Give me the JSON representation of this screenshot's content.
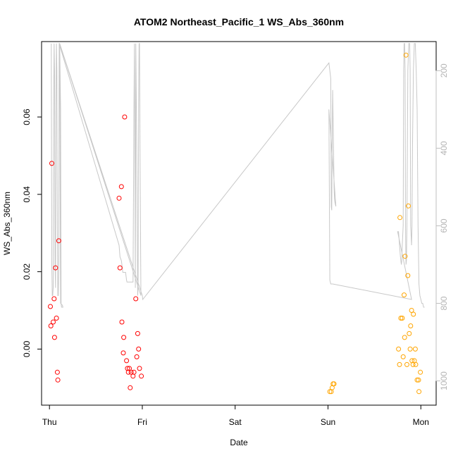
{
  "chart_data": {
    "type": "scatter",
    "title": "ATOM2 Northeast_Pacific_1 WS_Abs_360nm",
    "xlabel": "Date",
    "ylabel": "WS_Abs_360nm",
    "x_ticks": [
      "Thu",
      "Fri",
      "Sat",
      "Sun",
      "Mon"
    ],
    "x_tick_positions_days": [
      0,
      1,
      2,
      3,
      4
    ],
    "xlim_days": [
      -0.085,
      4.165
    ],
    "ylim": [
      -0.0145,
      0.0795
    ],
    "y_ticks": [
      0.0,
      0.02,
      0.04,
      0.06
    ],
    "y_tick_labels": [
      "0.00",
      "0.02",
      "0.04",
      "0.06"
    ],
    "right_axis": {
      "label": "",
      "reversed": true,
      "lim": [
        1062.5,
        125
      ],
      "ticks": [
        200,
        400,
        600,
        800,
        1000
      ],
      "tick_labels": [
        "200",
        "400",
        "600",
        "800",
        "1000"
      ],
      "color": "#bfbfbf"
    },
    "series": [
      {
        "color": "#ff0000",
        "marker": "open-circle",
        "points": [
          {
            "x": 0.01,
            "y": 0.011
          },
          {
            "x": 0.015,
            "y": 0.006
          },
          {
            "x": 0.025,
            "y": 0.048
          },
          {
            "x": 0.04,
            "y": 0.007
          },
          {
            "x": 0.05,
            "y": 0.013
          },
          {
            "x": 0.055,
            "y": 0.003
          },
          {
            "x": 0.065,
            "y": 0.021
          },
          {
            "x": 0.075,
            "y": 0.008
          },
          {
            "x": 0.085,
            "y": -0.006
          },
          {
            "x": 0.09,
            "y": -0.008
          },
          {
            "x": 0.1,
            "y": 0.028
          },
          {
            "x": 0.75,
            "y": 0.039
          },
          {
            "x": 0.76,
            "y": 0.021
          },
          {
            "x": 0.775,
            "y": 0.042
          },
          {
            "x": 0.78,
            "y": 0.007
          },
          {
            "x": 0.795,
            "y": -0.001
          },
          {
            "x": 0.8,
            "y": 0.003
          },
          {
            "x": 0.81,
            "y": 0.06
          },
          {
            "x": 0.83,
            "y": -0.003
          },
          {
            "x": 0.84,
            "y": -0.005
          },
          {
            "x": 0.85,
            "y": -0.006
          },
          {
            "x": 0.86,
            "y": -0.005
          },
          {
            "x": 0.87,
            "y": -0.01
          },
          {
            "x": 0.88,
            "y": -0.006
          },
          {
            "x": 0.9,
            "y": -0.007
          },
          {
            "x": 0.91,
            "y": -0.006
          },
          {
            "x": 0.93,
            "y": 0.013
          },
          {
            "x": 0.94,
            "y": -0.002
          },
          {
            "x": 0.95,
            "y": 0.004
          },
          {
            "x": 0.96,
            "y": 0.0
          },
          {
            "x": 0.97,
            "y": -0.005
          },
          {
            "x": 0.99,
            "y": -0.007
          }
        ]
      },
      {
        "color": "#ffa500",
        "marker": "open-circle",
        "points": [
          {
            "x": 3.02,
            "y": -0.011
          },
          {
            "x": 3.035,
            "y": -0.011
          },
          {
            "x": 3.045,
            "y": -0.01
          },
          {
            "x": 3.055,
            "y": -0.009
          },
          {
            "x": 3.065,
            "y": -0.009
          },
          {
            "x": 3.76,
            "y": 0.0
          },
          {
            "x": 3.77,
            "y": -0.004
          },
          {
            "x": 3.775,
            "y": 0.034
          },
          {
            "x": 3.785,
            "y": 0.008
          },
          {
            "x": 3.8,
            "y": 0.008
          },
          {
            "x": 3.81,
            "y": -0.002
          },
          {
            "x": 3.82,
            "y": 0.014
          },
          {
            "x": 3.825,
            "y": 0.003
          },
          {
            "x": 3.83,
            "y": 0.024
          },
          {
            "x": 3.84,
            "y": 0.076
          },
          {
            "x": 3.85,
            "y": -0.004
          },
          {
            "x": 3.86,
            "y": 0.019
          },
          {
            "x": 3.865,
            "y": 0.037
          },
          {
            "x": 3.875,
            "y": 0.004
          },
          {
            "x": 3.885,
            "y": 0.0
          },
          {
            "x": 3.89,
            "y": 0.006
          },
          {
            "x": 3.9,
            "y": 0.01
          },
          {
            "x": 3.905,
            "y": -0.003
          },
          {
            "x": 3.915,
            "y": -0.004
          },
          {
            "x": 3.92,
            "y": 0.009
          },
          {
            "x": 3.93,
            "y": -0.003
          },
          {
            "x": 3.94,
            "y": 0.0
          },
          {
            "x": 3.945,
            "y": -0.004
          },
          {
            "x": 3.96,
            "y": -0.008
          },
          {
            "x": 3.975,
            "y": -0.008
          },
          {
            "x": 3.98,
            "y": -0.011
          },
          {
            "x": 3.995,
            "y": -0.006
          }
        ]
      }
    ],
    "depth_line": {
      "color": "#c8c8c8",
      "axis": "right",
      "points": [
        [
          0.02,
          130
        ],
        [
          0.025,
          700
        ],
        [
          0.03,
          780
        ],
        [
          0.035,
          780
        ],
        [
          0.04,
          760
        ],
        [
          0.045,
          300
        ],
        [
          0.05,
          130
        ],
        [
          0.055,
          200
        ],
        [
          0.06,
          700
        ],
        [
          0.065,
          760
        ],
        [
          0.07,
          300
        ],
        [
          0.075,
          130
        ],
        [
          0.08,
          200
        ],
        [
          0.085,
          600
        ],
        [
          0.09,
          780
        ],
        [
          0.095,
          780
        ],
        [
          0.1,
          700
        ],
        [
          0.105,
          130
        ],
        [
          0.11,
          130
        ],
        [
          0.12,
          300
        ],
        [
          0.125,
          800
        ],
        [
          0.13,
          810
        ],
        [
          0.14,
          810
        ],
        [
          0.145,
          810
        ],
        [
          0.14,
          805
        ],
        [
          0.12,
          800
        ],
        [
          0.11,
          200
        ],
        [
          0.105,
          130
        ],
        [
          0.75,
          650
        ],
        [
          0.76,
          680
        ],
        [
          0.775,
          690
        ],
        [
          0.78,
          700
        ],
        [
          0.79,
          720
        ],
        [
          0.8,
          720
        ],
        [
          0.805,
          720
        ],
        [
          0.82,
          720
        ],
        [
          0.83,
          740
        ],
        [
          0.835,
          745
        ],
        [
          0.84,
          745
        ],
        [
          0.85,
          745
        ],
        [
          0.9,
          745
        ],
        [
          0.91,
          300
        ],
        [
          0.915,
          130
        ],
        [
          0.92,
          400
        ],
        [
          0.925,
          760
        ],
        [
          0.93,
          130
        ],
        [
          0.94,
          400
        ],
        [
          0.95,
          780
        ],
        [
          0.955,
          760
        ],
        [
          0.96,
          300
        ],
        [
          0.965,
          130
        ],
        [
          0.97,
          130
        ],
        [
          0.975,
          400
        ],
        [
          0.985,
          780
        ],
        [
          0.11,
          130
        ],
        [
          1.0,
          780
        ],
        [
          1.005,
          790
        ],
        [
          3.01,
          180
        ],
        [
          3.02,
          200
        ],
        [
          3.03,
          220
        ],
        [
          3.035,
          550
        ],
        [
          3.04,
          560
        ],
        [
          3.045,
          400
        ],
        [
          3.05,
          250
        ],
        [
          3.055,
          320
        ],
        [
          3.06,
          400
        ],
        [
          3.065,
          500
        ],
        [
          3.07,
          530
        ],
        [
          3.075,
          540
        ],
        [
          3.08,
          545
        ],
        [
          3.085,
          550
        ],
        [
          3.01,
          300
        ],
        [
          3.02,
          740
        ],
        [
          3.03,
          750
        ],
        [
          3.04,
          750
        ],
        [
          3.05,
          750
        ],
        [
          3.9,
          790
        ],
        [
          3.75,
          615
        ],
        [
          3.76,
          615
        ],
        [
          3.77,
          650
        ],
        [
          3.78,
          680
        ],
        [
          3.785,
          690
        ],
        [
          3.79,
          700
        ],
        [
          3.795,
          690
        ],
        [
          3.8,
          650
        ],
        [
          3.81,
          600
        ],
        [
          3.815,
          200
        ],
        [
          3.82,
          130
        ],
        [
          3.825,
          130
        ],
        [
          3.83,
          200
        ],
        [
          3.835,
          600
        ],
        [
          3.84,
          700
        ],
        [
          3.845,
          690
        ],
        [
          3.85,
          600
        ],
        [
          3.86,
          200
        ],
        [
          3.87,
          130
        ],
        [
          3.88,
          130
        ],
        [
          3.885,
          200
        ],
        [
          3.89,
          600
        ],
        [
          3.9,
          650
        ],
        [
          3.905,
          600
        ],
        [
          3.91,
          400
        ],
        [
          3.92,
          200
        ],
        [
          3.93,
          130
        ],
        [
          3.94,
          130
        ],
        [
          3.95,
          200
        ],
        [
          3.96,
          300
        ],
        [
          3.97,
          600
        ],
        [
          3.98,
          750
        ],
        [
          3.99,
          780
        ],
        [
          4.0,
          790
        ],
        [
          4.01,
          800
        ],
        [
          4.02,
          800
        ],
        [
          4.03,
          810
        ],
        [
          4.04,
          810
        ]
      ]
    }
  }
}
